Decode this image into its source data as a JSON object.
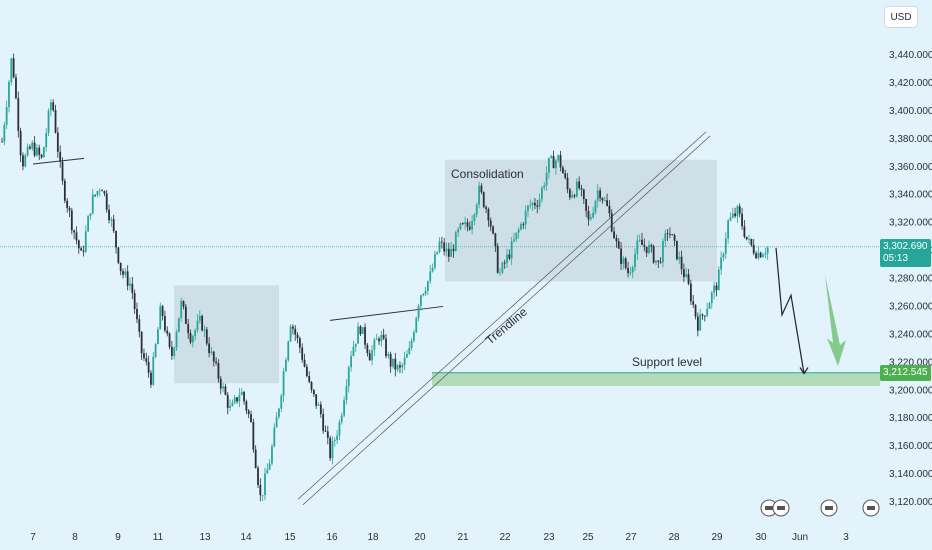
{
  "currency": "USD",
  "current_price": {
    "value": 3302.69,
    "label": "3,302.690",
    "countdown": "05:13",
    "color": "#26a69a"
  },
  "support_price": {
    "value": 3212.545,
    "label": "3,212.545",
    "color": "#4caf50"
  },
  "annotations": {
    "consolidation": "Consolidation",
    "trendline": "Trendline",
    "support_level": "Support level"
  },
  "colors": {
    "up": "#26a69a",
    "down": "#2a2e39",
    "zone": "#c8d8e0",
    "support_zone": "#a5d6a7",
    "arrow": "#66bb6a"
  },
  "chart_data": {
    "type": "candlestick",
    "title": "",
    "xlabel": "",
    "ylabel": "",
    "ylim": [
      3110,
      3460
    ],
    "y_ticks": [
      3120,
      3140,
      3160,
      3180,
      3200,
      3220,
      3240,
      3260,
      3280,
      3300,
      3320,
      3340,
      3360,
      3380,
      3400,
      3420,
      3440
    ],
    "y_tick_labels": [
      "3,120.000",
      "3,140.000",
      "3,160.000",
      "3,180.000",
      "3,200.000",
      "3,220.000",
      "3,240.000",
      "3,260.000",
      "3,280.000",
      "3,300.000",
      "3,320.000",
      "3,340.000",
      "3,360.000",
      "3,380.000",
      "3,400.000",
      "3,420.000",
      "3,440.000"
    ],
    "x_tick_labels": [
      "7",
      "8",
      "9",
      "11",
      "13",
      "14",
      "15",
      "16",
      "18",
      "20",
      "21",
      "22",
      "23",
      "25",
      "27",
      "28",
      "29",
      "30",
      "Jun",
      "3"
    ],
    "price_path": [
      3378,
      3440,
      3362,
      3375,
      3365,
      3410,
      3350,
      3320,
      3295,
      3335,
      3348,
      3320,
      3285,
      3275,
      3228,
      3208,
      3260,
      3222,
      3262,
      3238,
      3250,
      3226,
      3205,
      3185,
      3200,
      3178,
      3122,
      3152,
      3196,
      3250,
      3230,
      3200,
      3185,
      3154,
      3178,
      3225,
      3246,
      3225,
      3240,
      3220,
      3214,
      3228,
      3268,
      3280,
      3305,
      3296,
      3315,
      3318,
      3343,
      3325,
      3282,
      3298,
      3315,
      3332,
      3336,
      3362,
      3366,
      3340,
      3346,
      3320,
      3345,
      3328,
      3298,
      3284,
      3305,
      3302,
      3290,
      3316,
      3295,
      3275,
      3247,
      3262,
      3278,
      3320,
      3328,
      3306,
      3298,
      3302
    ],
    "forecast_path": [
      3302,
      3254,
      3268,
      3212
    ],
    "support_level": 3212.545,
    "horizontal_lines": [
      3302.69
    ]
  }
}
